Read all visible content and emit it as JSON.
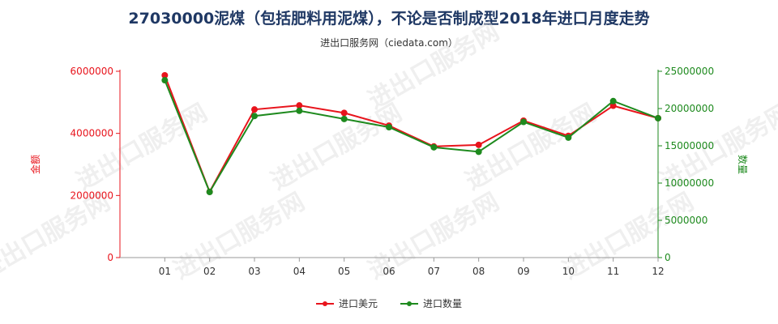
{
  "header": {
    "title": "27030000泥煤（包括肥料用泥煤），不论是否制成型2018年进口月度走势",
    "subtitle": "进出口服务网（ciedata.com）",
    "watermark": "进出口服务网"
  },
  "chart_data": {
    "type": "line",
    "categories": [
      "01",
      "02",
      "03",
      "04",
      "05",
      "06",
      "07",
      "08",
      "09",
      "10",
      "11",
      "12"
    ],
    "series": [
      {
        "name": "进口美元",
        "axis": "left",
        "color": "#e8141c",
        "values": [
          5870000,
          2120000,
          4770000,
          4900000,
          4660000,
          4250000,
          3580000,
          3630000,
          4410000,
          3920000,
          4890000,
          4490000
        ]
      },
      {
        "name": "进口数量",
        "axis": "right",
        "color": "#1e8a1e",
        "values": [
          23800000,
          8800000,
          19000000,
          19700000,
          18600000,
          17500000,
          14800000,
          14200000,
          18200000,
          16100000,
          21000000,
          18700000
        ]
      }
    ],
    "y_left": {
      "label": "金额",
      "min": 0,
      "max": 6000000,
      "ticks": [
        "0",
        "2000000",
        "4000000",
        "6000000"
      ],
      "color": "#e8141c"
    },
    "y_right": {
      "label": "数量",
      "min": 0,
      "max": 25000000,
      "ticks": [
        "0",
        "5000000",
        "10000000",
        "15000000",
        "20000000",
        "25000000"
      ],
      "color": "#1e8a1e"
    },
    "grid": false,
    "legend_position": "bottom"
  }
}
